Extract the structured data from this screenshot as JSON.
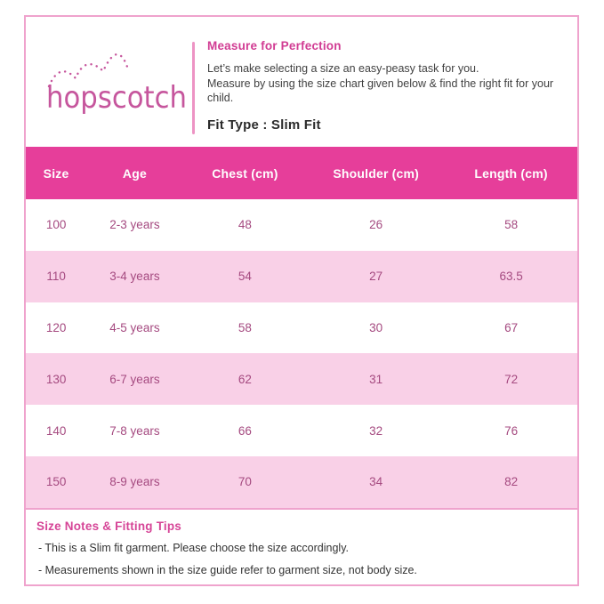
{
  "brand": {
    "name": "hopscotch"
  },
  "header": {
    "title": "Measure for Perfection",
    "intro_lines": [
      "Let’s make selecting a size an easy-peasy task for you.",
      "Measure by using the size chart given below & find the right fit for your",
      "child."
    ],
    "fit_type": "Fit Type : Slim Fit"
  },
  "size_chart": {
    "columns": [
      "Size",
      "Age",
      "Chest (cm)",
      "Shoulder (cm)",
      "Length (cm)"
    ],
    "rows": [
      [
        "100",
        "2-3 years",
        "48",
        "26",
        "58"
      ],
      [
        "110",
        "3-4 years",
        "54",
        "27",
        "63.5"
      ],
      [
        "120",
        "4-5 years",
        "58",
        "30",
        "67"
      ],
      [
        "130",
        "6-7 years",
        "62",
        "31",
        "72"
      ],
      [
        "140",
        "7-8 years",
        "66",
        "32",
        "76"
      ],
      [
        "150",
        "8-9 years",
        "70",
        "34",
        "82"
      ]
    ]
  },
  "notes": {
    "title": "Size Notes & Fitting Tips",
    "items": [
      "- This is a Slim fit garment. Please choose the size accordingly.",
      "- Measurements shown in the size guide refer to garment size, not body size."
    ]
  },
  "colors": {
    "brand_pink": "#c6569d",
    "accent_heading": "#d13c93",
    "header_bar": "#e63e9a",
    "alt_row": "#f9d0e7",
    "card_border": "#efa3cd",
    "cell_text": "#a54a80"
  }
}
